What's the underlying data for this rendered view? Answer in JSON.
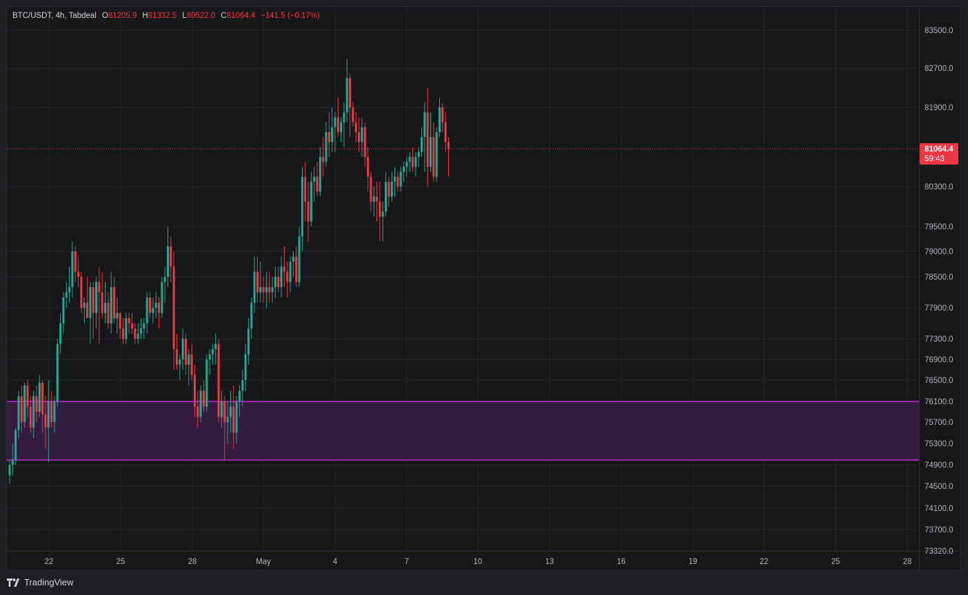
{
  "header": {
    "symbol": "BTC/USDT, 4h, Tabdeal",
    "open_label": "O",
    "open": "81205.9",
    "high_label": "H",
    "high": "81332.5",
    "low_label": "L",
    "low": "80522.0",
    "close_label": "C",
    "close": "81064.4",
    "change": "−141.5 (−0.17%)"
  },
  "price_tag": {
    "price": "81064.4",
    "countdown": "59:43"
  },
  "footer": {
    "brand": "TradingView"
  },
  "colors": {
    "up": "#22ab94",
    "down": "#f23645",
    "zone_line": "#9c27b0",
    "zone_fill": "#331c3d",
    "background": "#161719",
    "grid": "#25272c"
  },
  "chart_data": {
    "type": "candlestick",
    "title": "BTC/USDT, 4h, Tabdeal",
    "y_ticks": [
      83500,
      82700,
      81900,
      80300,
      79500,
      79000,
      78500,
      77900,
      77300,
      76900,
      76500,
      76100,
      75700,
      75300,
      74900,
      74500,
      74100,
      73700,
      73320
    ],
    "x_ticks": [
      "22",
      "25",
      "28",
      "May",
      "4",
      "7",
      "10",
      "13",
      "16",
      "19",
      "22",
      "25",
      "28"
    ],
    "ylim": [
      73320,
      83800
    ],
    "last_price": 81064.4,
    "support_zone": {
      "top": 76100,
      "bottom": 74990
    },
    "candles": [
      [
        74700,
        75000,
        74550,
        74900
      ],
      [
        74900,
        75300,
        74700,
        75000
      ],
      [
        75000,
        75600,
        74900,
        75550
      ],
      [
        75550,
        76300,
        75400,
        76200
      ],
      [
        76200,
        76400,
        75500,
        75700
      ],
      [
        75700,
        76450,
        75600,
        76400
      ],
      [
        76400,
        76500,
        75800,
        76000
      ],
      [
        76000,
        76200,
        75500,
        75600
      ],
      [
        75600,
        76300,
        75400,
        76200
      ],
      [
        76200,
        76400,
        75700,
        75900
      ],
      [
        75900,
        76600,
        75800,
        76450
      ],
      [
        76450,
        76500,
        75500,
        75850
      ],
      [
        75850,
        76200,
        75200,
        75600
      ],
      [
        75600,
        76500,
        74950,
        76100
      ],
      [
        76100,
        76300,
        75600,
        75700
      ],
      [
        75700,
        76200,
        75500,
        76100
      ],
      [
        76100,
        77300,
        76000,
        77200
      ],
      [
        77200,
        77800,
        77000,
        77600
      ],
      [
        77600,
        78200,
        77400,
        78100
      ],
      [
        78100,
        78400,
        77900,
        78200
      ],
      [
        78200,
        78700,
        78000,
        78300
      ],
      [
        78300,
        79200,
        78100,
        79000
      ],
      [
        79000,
        79100,
        78400,
        78600
      ],
      [
        78600,
        78900,
        78300,
        78500
      ],
      [
        78500,
        78600,
        77800,
        77900
      ],
      [
        77900,
        78100,
        77600,
        78000
      ],
      [
        78000,
        78500,
        77700,
        77700
      ],
      [
        77700,
        78400,
        77200,
        78300
      ],
      [
        78300,
        78400,
        77300,
        77800
      ],
      [
        77800,
        78500,
        77500,
        78400
      ],
      [
        78400,
        78700,
        77200,
        78200
      ],
      [
        78200,
        78600,
        77700,
        77800
      ],
      [
        77800,
        78400,
        77600,
        78000
      ],
      [
        78000,
        78200,
        77500,
        77600
      ],
      [
        77600,
        78600,
        77400,
        78300
      ],
      [
        78300,
        78500,
        77600,
        77700
      ],
      [
        77700,
        78100,
        77400,
        77800
      ],
      [
        77800,
        77800,
        77300,
        77500
      ],
      [
        77500,
        77700,
        77200,
        77300
      ],
      [
        77300,
        77800,
        77200,
        77700
      ],
      [
        77700,
        77800,
        77400,
        77600
      ],
      [
        77600,
        77800,
        77400,
        77500
      ],
      [
        77500,
        77600,
        77200,
        77300
      ],
      [
        77300,
        77600,
        77200,
        77400
      ],
      [
        77400,
        77700,
        77300,
        77500
      ],
      [
        77500,
        77700,
        77300,
        77600
      ],
      [
        77600,
        78200,
        77400,
        78100
      ],
      [
        78100,
        78200,
        77700,
        77800
      ],
      [
        77800,
        78100,
        77600,
        77900
      ],
      [
        77900,
        78200,
        77700,
        78000
      ],
      [
        78000,
        78100,
        77500,
        77800
      ],
      [
        77800,
        78500,
        77700,
        78400
      ],
      [
        78400,
        78700,
        78000,
        78500
      ],
      [
        78500,
        79500,
        78300,
        79100
      ],
      [
        79100,
        79300,
        78400,
        78700
      ],
      [
        78700,
        79000,
        76700,
        77100
      ],
      [
        77100,
        77400,
        76700,
        76800
      ],
      [
        76800,
        77000,
        76500,
        76900
      ],
      [
        76900,
        77500,
        76700,
        77300
      ],
      [
        77300,
        77400,
        76600,
        76800
      ],
      [
        76800,
        77100,
        76400,
        77000
      ],
      [
        77000,
        77200,
        76500,
        76600
      ],
      [
        76600,
        76800,
        75800,
        76000
      ],
      [
        76000,
        76300,
        75600,
        75800
      ],
      [
        75800,
        76400,
        75700,
        76300
      ],
      [
        76300,
        76500,
        75900,
        76000
      ],
      [
        76000,
        77000,
        75900,
        76900
      ],
      [
        76900,
        77100,
        76600,
        77000
      ],
      [
        77000,
        77200,
        76800,
        77100
      ],
      [
        77100,
        77400,
        76800,
        77200
      ],
      [
        77200,
        77300,
        75700,
        75800
      ],
      [
        75800,
        76300,
        75600,
        76100
      ],
      [
        76100,
        76200,
        75000,
        75700
      ],
      [
        75700,
        76100,
        75300,
        75800
      ],
      [
        75800,
        76300,
        75500,
        76000
      ],
      [
        76000,
        76400,
        75200,
        75500
      ],
      [
        75500,
        76200,
        75300,
        76100
      ],
      [
        76100,
        76400,
        75800,
        76300
      ],
      [
        76300,
        76700,
        76000,
        76500
      ],
      [
        76500,
        77200,
        76300,
        77000
      ],
      [
        77000,
        77700,
        76800,
        77500
      ],
      [
        77500,
        78100,
        77300,
        78000
      ],
      [
        78000,
        78900,
        77800,
        78600
      ],
      [
        78600,
        78900,
        78000,
        78200
      ],
      [
        78200,
        78800,
        78000,
        78300
      ],
      [
        78300,
        78500,
        78000,
        78200
      ],
      [
        78200,
        78600,
        77900,
        78300
      ],
      [
        78300,
        78600,
        78000,
        78200
      ],
      [
        78200,
        78500,
        78000,
        78300
      ],
      [
        78300,
        78700,
        78100,
        78500
      ],
      [
        78500,
        78700,
        78200,
        78300
      ],
      [
        78300,
        78900,
        78100,
        78700
      ],
      [
        78700,
        79100,
        78300,
        78600
      ],
      [
        78600,
        78800,
        78100,
        78400
      ],
      [
        78400,
        78900,
        78200,
        78800
      ],
      [
        78800,
        79000,
        78500,
        78900
      ],
      [
        78900,
        79100,
        78300,
        78400
      ],
      [
        78400,
        79500,
        78300,
        79300
      ],
      [
        79300,
        80700,
        79000,
        80500
      ],
      [
        80500,
        80800,
        79600,
        80000
      ],
      [
        80000,
        80400,
        79200,
        79600
      ],
      [
        79600,
        80600,
        79500,
        80400
      ],
      [
        80400,
        80700,
        80000,
        80500
      ],
      [
        80500,
        80800,
        80100,
        80200
      ],
      [
        80200,
        81100,
        80100,
        80900
      ],
      [
        80900,
        81300,
        80500,
        80800
      ],
      [
        80800,
        81600,
        80700,
        81400
      ],
      [
        81400,
        81800,
        80900,
        81200
      ],
      [
        81200,
        81900,
        81000,
        81500
      ],
      [
        81500,
        81800,
        81000,
        81700
      ],
      [
        81700,
        82100,
        81300,
        81400
      ],
      [
        81400,
        81700,
        81200,
        81600
      ],
      [
        81600,
        82000,
        81100,
        81800
      ],
      [
        81800,
        82900,
        81600,
        82500
      ],
      [
        82500,
        82600,
        81300,
        81900
      ],
      [
        81900,
        82000,
        81500,
        81600
      ],
      [
        81600,
        81800,
        81200,
        81400
      ],
      [
        81400,
        81700,
        81000,
        81200
      ],
      [
        81200,
        81700,
        80900,
        81500
      ],
      [
        81500,
        81600,
        80700,
        80900
      ],
      [
        80900,
        81100,
        80200,
        80500
      ],
      [
        80500,
        80600,
        79800,
        80000
      ],
      [
        80000,
        80300,
        79700,
        80100
      ],
      [
        80100,
        80400,
        79600,
        80000
      ],
      [
        80000,
        80400,
        79200,
        79700
      ],
      [
        79700,
        80000,
        79200,
        79800
      ],
      [
        79800,
        80600,
        79700,
        80400
      ],
      [
        80400,
        80500,
        79900,
        80100
      ],
      [
        80100,
        80600,
        80000,
        80400
      ],
      [
        80400,
        80700,
        80100,
        80500
      ],
      [
        80500,
        80600,
        80200,
        80300
      ],
      [
        80300,
        80700,
        80200,
        80600
      ],
      [
        80600,
        80800,
        80400,
        80700
      ],
      [
        80700,
        80900,
        80500,
        80800
      ],
      [
        80800,
        81000,
        80600,
        80900
      ],
      [
        80900,
        81100,
        80600,
        80700
      ],
      [
        80700,
        81000,
        80500,
        80900
      ],
      [
        80900,
        81100,
        80700,
        81000
      ],
      [
        81000,
        81500,
        80900,
        81300
      ],
      [
        81300,
        82000,
        80600,
        81800
      ],
      [
        81800,
        82300,
        80300,
        80700
      ],
      [
        80700,
        81800,
        80600,
        81300
      ],
      [
        81300,
        81600,
        80400,
        80500
      ],
      [
        80500,
        81500,
        80400,
        81400
      ],
      [
        81400,
        82100,
        81300,
        81900
      ],
      [
        81900,
        82000,
        81400,
        81600
      ],
      [
        81600,
        81800,
        81000,
        81200
      ],
      [
        81200,
        81300,
        80500,
        81064.4
      ]
    ]
  }
}
